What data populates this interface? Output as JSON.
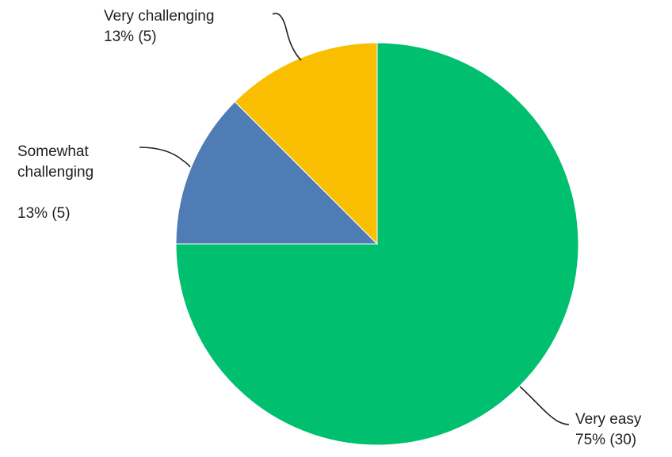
{
  "chart_data": {
    "type": "pie",
    "title": "",
    "start": "top",
    "direction": "clockwise",
    "slices": [
      {
        "key": "very-easy",
        "label": "Very easy",
        "percent_label": "75%",
        "count_label": "(30)",
        "value": 30,
        "color": "#00BF6F"
      },
      {
        "key": "somewhat-challenging",
        "label_lines": [
          "Somewhat",
          "challenging"
        ],
        "percent_label": "13%",
        "count_label": "(5)",
        "value": 5,
        "color": "#507CB6"
      },
      {
        "key": "very-challenging",
        "label": "Very challenging",
        "percent_label": "13%",
        "count_label": "(5)",
        "value": 5,
        "color": "#F9BE00"
      }
    ]
  }
}
